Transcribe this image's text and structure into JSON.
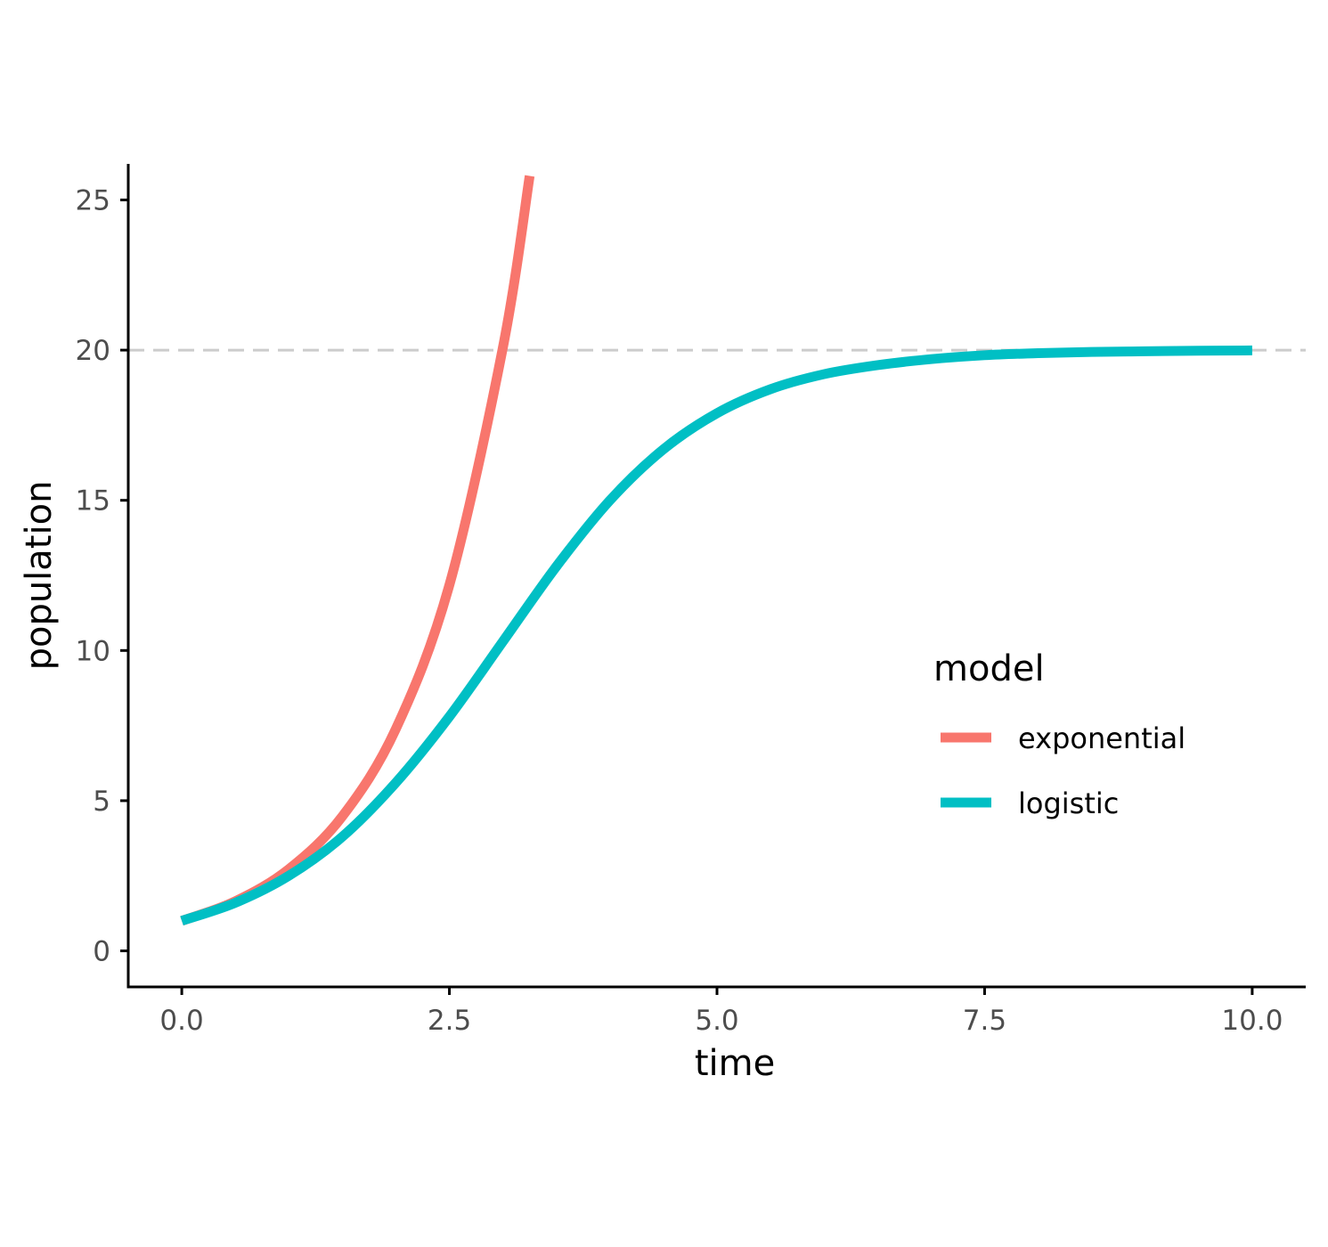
{
  "chart_data": {
    "type": "line",
    "title": "",
    "xlabel": "time",
    "ylabel": "population",
    "xlim": [
      -0.5,
      10.5
    ],
    "ylim": [
      -1.2,
      26.2
    ],
    "x_ticks": [
      0,
      2.5,
      5,
      7.5,
      10
    ],
    "x_tick_labels": [
      "0.0",
      "2.5",
      "5.0",
      "7.5",
      "10.0"
    ],
    "y_ticks": [
      0,
      5,
      10,
      15,
      20,
      25
    ],
    "y_tick_labels": [
      "0",
      "5",
      "10",
      "15",
      "20",
      "25"
    ],
    "grid": false,
    "reference_line": {
      "y": 20,
      "style": "dashed",
      "color": "#cccccc"
    },
    "legend": {
      "title": "model",
      "placement": "right"
    },
    "series": [
      {
        "name": "exponential",
        "color": "#F8766D",
        "x": [
          0,
          0.5,
          1,
          1.5,
          2,
          2.5,
          3,
          3.25
        ],
        "y": [
          1.0,
          1.65,
          2.72,
          4.48,
          7.39,
          12.18,
          20.09,
          25.8
        ]
      },
      {
        "name": "logistic",
        "color": "#00BFC4",
        "x": [
          0,
          0.5,
          1,
          1.5,
          2,
          2.5,
          3,
          3.5,
          4,
          4.5,
          5,
          5.5,
          6,
          6.5,
          7,
          7.5,
          8,
          8.5,
          9,
          9.5,
          10
        ],
        "y": [
          1.0,
          1.6,
          2.5,
          3.8,
          5.6,
          7.8,
          10.3,
          12.8,
          15.0,
          16.7,
          17.9,
          18.7,
          19.2,
          19.5,
          19.7,
          19.83,
          19.9,
          19.94,
          19.96,
          19.98,
          19.99
        ]
      }
    ]
  }
}
